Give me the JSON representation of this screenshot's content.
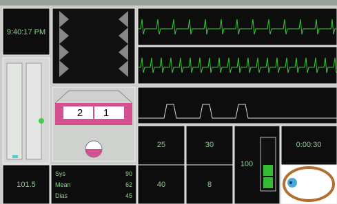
{
  "clock": "9:40:17 PM",
  "tray": {
    "left": "2",
    "right": "1"
  },
  "readouts": {
    "a": "25",
    "b": "30",
    "c": "100",
    "d": "0:00:30",
    "e": "40",
    "f": "8",
    "temp": "101.5"
  },
  "bp": [
    {
      "label": "Sys",
      "value": "90"
    },
    {
      "label": "Mean",
      "value": "62"
    },
    {
      "label": "Dias",
      "value": "45"
    }
  ]
}
